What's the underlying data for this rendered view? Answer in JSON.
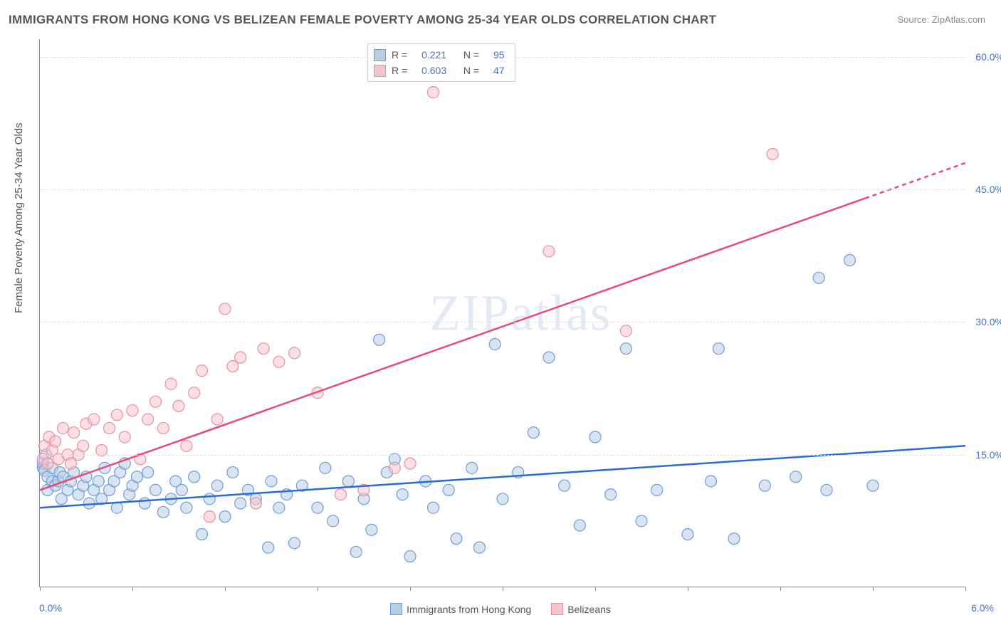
{
  "title": "IMMIGRANTS FROM HONG KONG VS BELIZEAN FEMALE POVERTY AMONG 25-34 YEAR OLDS CORRELATION CHART",
  "source": "Source: ZipAtlas.com",
  "ylabel": "Female Poverty Among 25-34 Year Olds",
  "watermark": "ZIPatlas",
  "chart": {
    "type": "scatter",
    "xlim": [
      0.0,
      6.0
    ],
    "ylim": [
      0.0,
      62.0
    ],
    "xlim_labels": [
      "0.0%",
      "6.0%"
    ],
    "ytick_values": [
      15.0,
      30.0,
      45.0,
      60.0
    ],
    "ytick_labels": [
      "15.0%",
      "30.0%",
      "45.0%",
      "60.0%"
    ],
    "xtick_positions": [
      0.0,
      0.6,
      1.2,
      1.8,
      2.4,
      3.0,
      3.6,
      4.2,
      4.8,
      5.4,
      6.0
    ],
    "background_color": "#ffffff",
    "grid_color": "#e0e0e0",
    "axis_color": "#888888",
    "marker_radius": 8,
    "marker_stroke_width": 1.2,
    "line_width": 2.5,
    "series": [
      {
        "name": "Immigrants from Hong Kong",
        "color_fill": "#b8cde8",
        "color_stroke": "#6f9dd8",
        "line_color": "#2b6cd4",
        "fill_opacity": 0.55,
        "R": "0.221",
        "N": "95",
        "trend": {
          "x1": 0.0,
          "y1": 9.0,
          "x2": 6.0,
          "y2": 16.0
        },
        "points": [
          [
            0.02,
            13.5
          ],
          [
            0.02,
            14.0
          ],
          [
            0.03,
            13.2
          ],
          [
            0.04,
            15.0
          ],
          [
            0.05,
            12.5
          ],
          [
            0.05,
            11.0
          ],
          [
            0.08,
            12.0
          ],
          [
            0.08,
            13.5
          ],
          [
            0.1,
            11.5
          ],
          [
            0.12,
            12.0
          ],
          [
            0.13,
            13.0
          ],
          [
            0.14,
            10.0
          ],
          [
            0.15,
            12.5
          ],
          [
            0.18,
            11.0
          ],
          [
            0.2,
            12.0
          ],
          [
            0.22,
            13.0
          ],
          [
            0.25,
            10.5
          ],
          [
            0.28,
            11.5
          ],
          [
            0.3,
            12.5
          ],
          [
            0.32,
            9.5
          ],
          [
            0.35,
            11.0
          ],
          [
            0.38,
            12.0
          ],
          [
            0.4,
            10.0
          ],
          [
            0.42,
            13.5
          ],
          [
            0.45,
            11.0
          ],
          [
            0.48,
            12.0
          ],
          [
            0.5,
            9.0
          ],
          [
            0.52,
            13.0
          ],
          [
            0.55,
            14.0
          ],
          [
            0.58,
            10.5
          ],
          [
            0.6,
            11.5
          ],
          [
            0.63,
            12.5
          ],
          [
            0.68,
            9.5
          ],
          [
            0.7,
            13.0
          ],
          [
            0.75,
            11.0
          ],
          [
            0.8,
            8.5
          ],
          [
            0.85,
            10.0
          ],
          [
            0.88,
            12.0
          ],
          [
            0.92,
            11.0
          ],
          [
            0.95,
            9.0
          ],
          [
            1.0,
            12.5
          ],
          [
            1.05,
            6.0
          ],
          [
            1.1,
            10.0
          ],
          [
            1.15,
            11.5
          ],
          [
            1.2,
            8.0
          ],
          [
            1.25,
            13.0
          ],
          [
            1.3,
            9.5
          ],
          [
            1.35,
            11.0
          ],
          [
            1.4,
            10.0
          ],
          [
            1.48,
            4.5
          ],
          [
            1.5,
            12.0
          ],
          [
            1.55,
            9.0
          ],
          [
            1.6,
            10.5
          ],
          [
            1.65,
            5.0
          ],
          [
            1.7,
            11.5
          ],
          [
            1.8,
            9.0
          ],
          [
            1.85,
            13.5
          ],
          [
            1.9,
            7.5
          ],
          [
            2.0,
            12.0
          ],
          [
            2.05,
            4.0
          ],
          [
            2.1,
            10.0
          ],
          [
            2.15,
            6.5
          ],
          [
            2.2,
            28.0
          ],
          [
            2.25,
            13.0
          ],
          [
            2.3,
            14.5
          ],
          [
            2.35,
            10.5
          ],
          [
            2.4,
            3.5
          ],
          [
            2.5,
            12.0
          ],
          [
            2.55,
            9.0
          ],
          [
            2.65,
            11.0
          ],
          [
            2.7,
            5.5
          ],
          [
            2.8,
            13.5
          ],
          [
            2.85,
            4.5
          ],
          [
            2.95,
            27.5
          ],
          [
            3.0,
            10.0
          ],
          [
            3.1,
            13.0
          ],
          [
            3.2,
            17.5
          ],
          [
            3.3,
            26.0
          ],
          [
            3.4,
            11.5
          ],
          [
            3.5,
            7.0
          ],
          [
            3.6,
            17.0
          ],
          [
            3.7,
            10.5
          ],
          [
            3.8,
            27.0
          ],
          [
            3.9,
            7.5
          ],
          [
            4.0,
            11.0
          ],
          [
            4.2,
            6.0
          ],
          [
            4.35,
            12.0
          ],
          [
            4.4,
            27.0
          ],
          [
            4.5,
            5.5
          ],
          [
            4.7,
            11.5
          ],
          [
            4.9,
            12.5
          ],
          [
            5.05,
            35.0
          ],
          [
            5.1,
            11.0
          ],
          [
            5.25,
            37.0
          ],
          [
            5.4,
            11.5
          ]
        ]
      },
      {
        "name": "Belizeans",
        "color_fill": "#f5c4cd",
        "color_stroke": "#e890a3",
        "line_color": "#e84b76",
        "fill_opacity": 0.55,
        "R": "0.603",
        "N": "47",
        "trend": {
          "x1": 0.0,
          "y1": 11.0,
          "x2": 5.35,
          "y2": 44.0
        },
        "trend_dash": {
          "x1": 5.35,
          "y1": 44.0,
          "x2": 6.0,
          "y2": 48.0
        },
        "points": [
          [
            0.02,
            14.5
          ],
          [
            0.03,
            16.0
          ],
          [
            0.05,
            14.0
          ],
          [
            0.06,
            17.0
          ],
          [
            0.08,
            15.5
          ],
          [
            0.1,
            16.5
          ],
          [
            0.12,
            14.5
          ],
          [
            0.15,
            18.0
          ],
          [
            0.18,
            15.0
          ],
          [
            0.2,
            14.0
          ],
          [
            0.22,
            17.5
          ],
          [
            0.25,
            15.0
          ],
          [
            0.28,
            16.0
          ],
          [
            0.3,
            18.5
          ],
          [
            0.35,
            19.0
          ],
          [
            0.4,
            15.5
          ],
          [
            0.45,
            18.0
          ],
          [
            0.5,
            19.5
          ],
          [
            0.55,
            17.0
          ],
          [
            0.6,
            20.0
          ],
          [
            0.65,
            14.5
          ],
          [
            0.7,
            19.0
          ],
          [
            0.75,
            21.0
          ],
          [
            0.8,
            18.0
          ],
          [
            0.85,
            23.0
          ],
          [
            0.9,
            20.5
          ],
          [
            0.95,
            16.0
          ],
          [
            1.0,
            22.0
          ],
          [
            1.05,
            24.5
          ],
          [
            1.1,
            8.0
          ],
          [
            1.15,
            19.0
          ],
          [
            1.2,
            31.5
          ],
          [
            1.25,
            25.0
          ],
          [
            1.3,
            26.0
          ],
          [
            1.4,
            9.5
          ],
          [
            1.45,
            27.0
          ],
          [
            1.55,
            25.5
          ],
          [
            1.65,
            26.5
          ],
          [
            1.8,
            22.0
          ],
          [
            1.95,
            10.5
          ],
          [
            2.1,
            11.0
          ],
          [
            2.3,
            13.5
          ],
          [
            2.4,
            14.0
          ],
          [
            2.55,
            56.0
          ],
          [
            3.3,
            38.0
          ],
          [
            3.8,
            29.0
          ],
          [
            4.75,
            49.0
          ]
        ]
      }
    ]
  },
  "bottom_legend": [
    {
      "label": "Immigrants from Hong Kong",
      "fill": "#b8cde8",
      "stroke": "#6f9dd8"
    },
    {
      "label": "Belizeans",
      "fill": "#f5c4cd",
      "stroke": "#e890a3"
    }
  ]
}
